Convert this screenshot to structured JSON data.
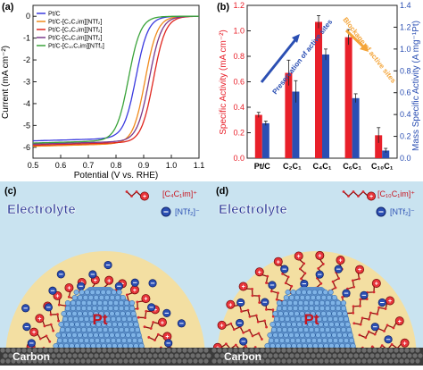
{
  "panels": {
    "a": {
      "label": "(a)",
      "chart_data": {
        "type": "line",
        "xlabel": "Potential (V vs. RHE)",
        "ylabel": "Current (mA cm⁻²)",
        "xlim": [
          0.5,
          1.1
        ],
        "ylim": [
          -6.5,
          0.5
        ],
        "xticks": [
          "0.5",
          "0.6",
          "0.7",
          "0.8",
          "0.9",
          "1.0",
          "1.1"
        ],
        "yticks": [
          "0",
          "-1",
          "-2",
          "-3",
          "-4",
          "-5",
          "-6"
        ],
        "grid": false,
        "legend_position": "top-left",
        "series": [
          {
            "name": "Pt/C",
            "color": "#3a3adf",
            "limiting": -5.6,
            "halfwave": 0.872
          },
          {
            "name": "Pt/C-[C₂C₁im][NTf₂]",
            "color": "#f08a1c",
            "limiting": -5.85,
            "halfwave": 0.905
          },
          {
            "name": "Pt/C-[C₄C₁im][NTf₂]",
            "color": "#e0261f",
            "limiting": -5.8,
            "halfwave": 0.935
          },
          {
            "name": "Pt/C-[C₆C₁im][NTf₂]",
            "color": "#7a3a8c",
            "limiting": -5.75,
            "halfwave": 0.92
          },
          {
            "name": "Pt/C-[C₁₀C₁im][NTf₂]",
            "color": "#3aa33a",
            "limiting": -5.7,
            "halfwave": 0.845
          }
        ]
      }
    },
    "b": {
      "label": "(b)",
      "chart_data": {
        "type": "bar",
        "categories": [
          "Pt/C",
          "C₂C₁",
          "C₄C₁",
          "C₆C₁",
          "C₁₀C₁"
        ],
        "ylabel_left": "Specific Activity (mA cm⁻²)",
        "ylabel_right": "Mass Specific Activity (A mg⁻¹Pt)",
        "ylim_left": [
          0,
          1.2
        ],
        "ylim_right": [
          0,
          1.4
        ],
        "yticks_left": [
          "0.0",
          "0.2",
          "0.4",
          "0.6",
          "0.8",
          "1.0",
          "1.2"
        ],
        "yticks_right": [
          "0.0",
          "0.2",
          "0.4",
          "0.6",
          "0.8",
          "1.0",
          "1.2",
          "1.4"
        ],
        "series": [
          {
            "name": "Specific Activity",
            "axis": "left",
            "color": "#e8202a",
            "values": [
              0.34,
              0.67,
              1.07,
              0.95,
              0.18
            ],
            "errors": [
              0.02,
              0.1,
              0.05,
              0.06,
              0.06
            ]
          },
          {
            "name": "Mass Specific Activity",
            "axis": "right",
            "color": "#2b4fb3",
            "values": [
              0.32,
              0.61,
              0.95,
              0.55,
              0.07
            ],
            "errors": [
              0.02,
              0.1,
              0.05,
              0.04,
              0.02
            ]
          }
        ],
        "annotations": [
          {
            "text": "Preservation of active sites",
            "color": "#2b4fb3"
          },
          {
            "text": "Blockage of active sites",
            "color": "#f4a53a"
          }
        ]
      }
    },
    "c": {
      "label": "(c)",
      "legend": [
        {
          "text": "[C₄C₁im]⁺"
        },
        {
          "text": "[NTf₂]⁻"
        }
      ],
      "electrolyte": "Electrolyte",
      "metal": "Pt",
      "support": "Carbon"
    },
    "d": {
      "label": "(d)",
      "legend": [
        {
          "text": "[C₁₀C₁im]⁺"
        },
        {
          "text": "[NTf₂]⁻"
        }
      ],
      "electrolyte": "Electrolyte",
      "metal": "Pt",
      "support": "Carbon"
    }
  }
}
